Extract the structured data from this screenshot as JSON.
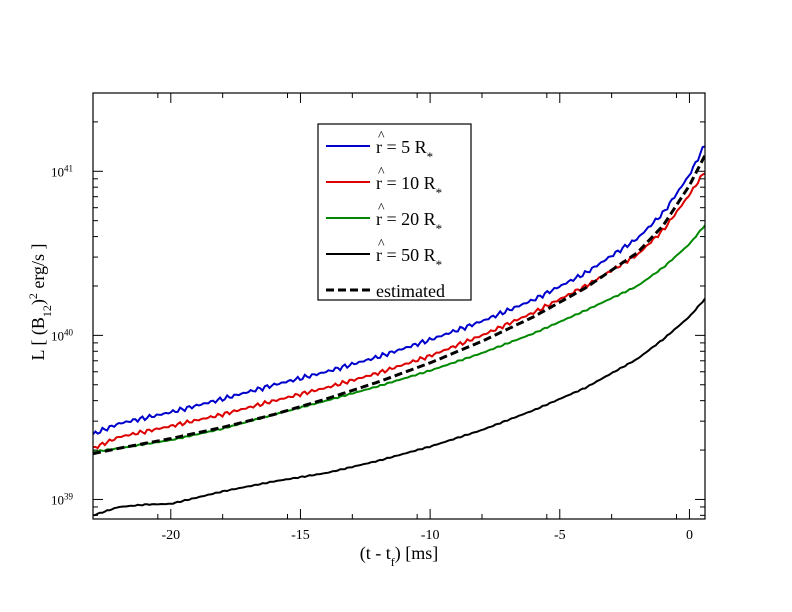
{
  "chart_data": {
    "type": "line",
    "title": "",
    "xlabel": {
      "text": "(t - t",
      "sub": "f",
      "tail": ") [ms]"
    },
    "ylabel": {
      "text": "L [ (B",
      "sub": "12",
      "mid": ")",
      "sup": "2",
      "tail": " erg/s ]"
    },
    "xlim": [
      -23,
      0.6
    ],
    "ylim": [
      7.6e+38,
      3e+41
    ],
    "yscale": "log",
    "x_ticks": [
      -20,
      -15,
      -10,
      -5,
      0
    ],
    "x_tick_labels": [
      "-20",
      "-15",
      "-10",
      "-5",
      "0"
    ],
    "y_ticks": [
      {
        "mantissa": "10",
        "exponent": "39",
        "value": 1e+39
      },
      {
        "mantissa": "10",
        "exponent": "40",
        "value": 1e+40
      },
      {
        "mantissa": "10",
        "exponent": "41",
        "value": 1e+41
      }
    ],
    "legend_position": "top-center",
    "series": [
      {
        "name": "r = 5 R*",
        "label": {
          "hat": "^",
          "pre": "r = 5 R",
          "sub": "*"
        },
        "color": "#0000cc",
        "dash": "solid",
        "wiggle": 0.035,
        "x": [
          -23,
          -22,
          -20,
          -18,
          -16,
          -14,
          -12,
          -10,
          -8,
          -6,
          -4,
          -2,
          -1,
          0,
          0.6
        ],
        "y": [
          2.5e+39,
          2.9e+39,
          3.4e+39,
          4.1e+39,
          5e+39,
          6e+39,
          7.4e+39,
          9.4e+39,
          1.22e+40,
          1.65e+40,
          2.4e+40,
          3.9e+40,
          5.6e+40,
          9.5e+40,
          1.45e+41
        ]
      },
      {
        "name": "r = 10 R*",
        "label": {
          "hat": "^",
          "pre": "r = 10 R",
          "sub": "*"
        },
        "color": "#dd0000",
        "dash": "solid",
        "wiggle": 0.03,
        "x": [
          -23,
          -22,
          -20,
          -18,
          -16,
          -14,
          -12,
          -10,
          -8,
          -6,
          -4,
          -2,
          -1,
          0,
          0.6
        ],
        "y": [
          2.05e+39,
          2.4e+39,
          2.8e+39,
          3.3e+39,
          4e+39,
          4.8e+39,
          5.9e+39,
          7.5e+39,
          1e+40,
          1.38e+40,
          2e+40,
          3.1e+40,
          4.4e+40,
          7.2e+40,
          1e+41
        ]
      },
      {
        "name": "r = 20 R*",
        "label": {
          "hat": "^",
          "pre": "r = 20 R",
          "sub": "*"
        },
        "color": "#008800",
        "dash": "solid",
        "wiggle": 0.01,
        "x": [
          -23,
          -22,
          -20,
          -18,
          -16,
          -14,
          -12,
          -10,
          -8,
          -6,
          -4,
          -2,
          -1,
          0,
          0.6
        ],
        "y": [
          1.95e+39,
          2.05e+39,
          2.3e+39,
          2.7e+39,
          3.3e+39,
          4e+39,
          4.9e+39,
          6.1e+39,
          7.8e+39,
          1.03e+40,
          1.42e+40,
          2e+40,
          2.6e+40,
          3.6e+40,
          4.7e+40
        ]
      },
      {
        "name": "r = 50 R*",
        "label": {
          "hat": "^",
          "pre": "r = 50 R",
          "sub": "*"
        },
        "color": "#000000",
        "dash": "solid",
        "wiggle": 0.008,
        "x": [
          -23,
          -22,
          -21,
          -20,
          -18,
          -16,
          -14,
          -12,
          -10,
          -8,
          -6,
          -4,
          -2,
          -1,
          0,
          0.6
        ],
        "y": [
          8e+38,
          9e+38,
          9.3e+38,
          9.4e+38,
          1.12e+39,
          1.29e+39,
          1.45e+39,
          1.72e+39,
          2.1e+39,
          2.65e+39,
          3.5e+39,
          4.8e+39,
          7.2e+39,
          9.5e+39,
          1.3e+40,
          1.67e+40
        ]
      },
      {
        "name": "estimated",
        "label": {
          "hat": "",
          "pre": "estimated",
          "sub": ""
        },
        "color": "#000000",
        "dash": "dashed",
        "wiggle": 0,
        "x": [
          -23,
          -22,
          -20,
          -18,
          -16,
          -14,
          -12,
          -10,
          -8,
          -6,
          -4,
          -2,
          -1,
          0,
          0.6
        ],
        "y": [
          1.9e+39,
          2.05e+39,
          2.35e+39,
          2.75e+39,
          3.3e+39,
          4.1e+39,
          5.2e+39,
          6.8e+39,
          9.2e+39,
          1.3e+40,
          1.95e+40,
          3.2e+40,
          4.7e+40,
          8.2e+40,
          1.25e+41
        ]
      }
    ]
  }
}
